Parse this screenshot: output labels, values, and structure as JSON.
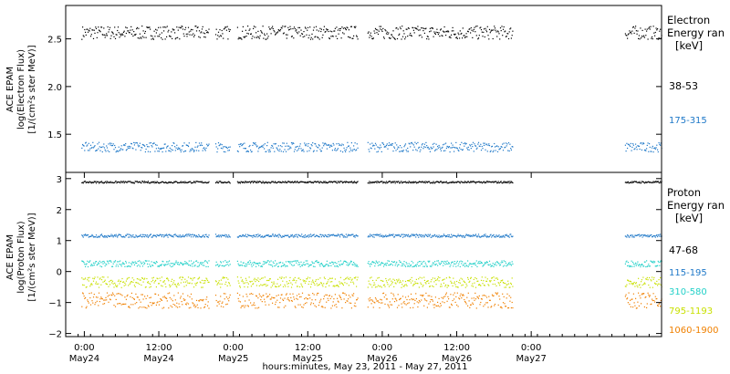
{
  "colors": {
    "axis": "#000000",
    "electron_38_53": "#000000",
    "electron_175_315": "#1e78c8",
    "proton_47_68": "#000000",
    "proton_115_195": "#1e78c8",
    "proton_310_580": "#22d0c8",
    "proton_795_1193": "#c8e000",
    "proton_1060_1900": "#f08000"
  },
  "chart_data": [
    {
      "type": "scatter",
      "panel": "electron",
      "ylabel_lines": [
        "ACE EPAM",
        "log(Electron Flux)",
        "[1/(cm²s ster MeV)]"
      ],
      "legend_title_lines": [
        "Electron",
        "Energy ran",
        "[keV]"
      ],
      "ylim": [
        1.1,
        2.85
      ],
      "yticks": [
        1.5,
        2.0,
        2.5
      ],
      "ytick_labels": [
        "1.5",
        "2.0",
        "2.5"
      ],
      "gaps_hours": [
        [
          0.0,
          2.5
        ],
        [
          23.0,
          24.0
        ],
        [
          26.4,
          27.5
        ],
        [
          47.0,
          48.6
        ],
        [
          72.0,
          90.0
        ]
      ],
      "series": [
        {
          "name": "38-53",
          "color_key": "electron_38_53",
          "base": 2.57,
          "spread": 0.07
        },
        {
          "name": "175-315",
          "color_key": "electron_175_315",
          "base": 1.37,
          "spread": 0.05
        }
      ]
    },
    {
      "type": "scatter",
      "panel": "proton",
      "ylabel_lines": [
        "ACE EPAM",
        "log(Proton Flux)",
        "[1/(cm²s ster MeV)]"
      ],
      "legend_title_lines": [
        "Proton",
        "Energy ran",
        "[keV]"
      ],
      "ylim": [
        -2.1,
        3.2
      ],
      "yticks": [
        -2,
        -1,
        0,
        1,
        2,
        3
      ],
      "ytick_labels": [
        "−2",
        "−1",
        "0",
        "1",
        "2",
        "3"
      ],
      "gaps_hours": [
        [
          0.0,
          2.5
        ],
        [
          23.0,
          24.0
        ],
        [
          26.4,
          27.5
        ],
        [
          47.0,
          48.6
        ],
        [
          72.0,
          90.0
        ]
      ],
      "series": [
        {
          "name": "47-68",
          "color_key": "proton_47_68",
          "base": 2.9,
          "spread": 0.03
        },
        {
          "name": "115-195",
          "color_key": "proton_115_195",
          "base": 1.17,
          "spread": 0.05
        },
        {
          "name": "310-580",
          "color_key": "proton_310_580",
          "base": 0.27,
          "spread": 0.1
        },
        {
          "name": "795-1193",
          "color_key": "proton_795_1193",
          "base": -0.33,
          "spread": 0.17
        },
        {
          "name": "1060-1900",
          "color_key": "proton_1060_1900",
          "base": -0.92,
          "spread": 0.25
        }
      ]
    }
  ],
  "x_axis": {
    "range_hours": [
      0,
      96
    ],
    "start": "May 23, 2011 21:00",
    "ticks": [
      {
        "hours": 3,
        "time": "0:00",
        "date": "May24"
      },
      {
        "hours": 15,
        "time": "12:00",
        "date": "May24"
      },
      {
        "hours": 27,
        "time": "0:00",
        "date": "May25"
      },
      {
        "hours": 39,
        "time": "12:00",
        "date": "May25"
      },
      {
        "hours": 51,
        "time": "0:00",
        "date": "May26"
      },
      {
        "hours": 63,
        "time": "12:00",
        "date": "May26"
      },
      {
        "hours": 75,
        "time": "0:00",
        "date": "May27"
      }
    ],
    "title": "hours:minutes, May 23, 2011 - May 27, 2011"
  }
}
